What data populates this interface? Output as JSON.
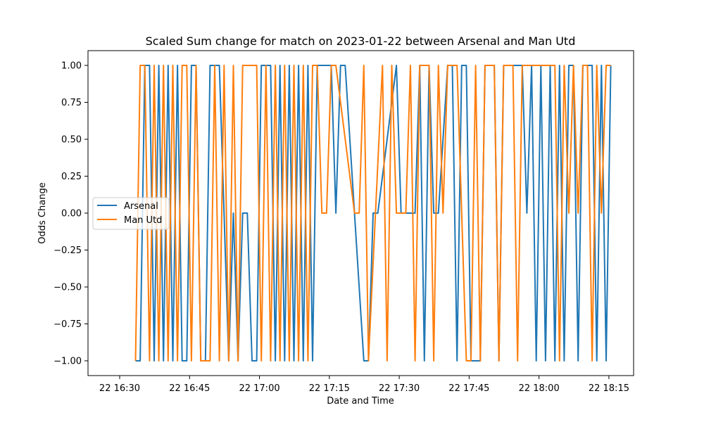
{
  "chart_data": {
    "type": "line",
    "title": "Scaled Sum change for match on 2023-01-22 between Arsenal and Man Utd",
    "xlabel": "Date and Time",
    "ylabel": "Odds Change",
    "x_tick_labels": [
      "22 16:30",
      "22 16:45",
      "22 17:00",
      "22 17:15",
      "22 17:30",
      "22 17:45",
      "22 18:00",
      "22 18:15"
    ],
    "x_tick_minutes": [
      0,
      15,
      30,
      45,
      60,
      75,
      90,
      105
    ],
    "y_tick_labels": [
      "−1.00",
      "−0.75",
      "−0.50",
      "−0.25",
      "0.00",
      "0.25",
      "0.50",
      "0.75",
      "1.00"
    ],
    "y_ticks": [
      -1.0,
      -0.75,
      -0.5,
      -0.25,
      0.0,
      0.25,
      0.5,
      0.75,
      1.0
    ],
    "xlim_minutes": [
      -6.8,
      110.3
    ],
    "ylim": [
      -1.1,
      1.1
    ],
    "grid": false,
    "legend_position": "center-left",
    "series": [
      {
        "name": "Arsenal",
        "color": "#1f77b4",
        "points": [
          [
            3.4,
            -1
          ],
          [
            4.4,
            -1
          ],
          [
            5.4,
            1
          ],
          [
            6.4,
            1
          ],
          [
            7.4,
            -1
          ],
          [
            8.4,
            1
          ],
          [
            9.4,
            -1
          ],
          [
            10.4,
            1
          ],
          [
            11.4,
            -1
          ],
          [
            12.4,
            1
          ],
          [
            13.4,
            -1
          ],
          [
            14.4,
            -1
          ],
          [
            15.4,
            1
          ],
          [
            16.4,
            1
          ],
          [
            17.4,
            -1
          ],
          [
            18.4,
            -1
          ],
          [
            19.4,
            1
          ],
          [
            20.4,
            1
          ],
          [
            21.4,
            1
          ],
          [
            23.4,
            -1
          ],
          [
            24.4,
            0
          ],
          [
            25.4,
            -1
          ],
          [
            26.4,
            0
          ],
          [
            27.4,
            0
          ],
          [
            28.4,
            -1
          ],
          [
            29.4,
            -1
          ],
          [
            30.4,
            1
          ],
          [
            32.4,
            1
          ],
          [
            33.4,
            -1
          ],
          [
            34.4,
            1
          ],
          [
            35.4,
            -1
          ],
          [
            36.4,
            1
          ],
          [
            37.4,
            -1
          ],
          [
            38.4,
            1
          ],
          [
            39.4,
            -1
          ],
          [
            40.4,
            1
          ],
          [
            41.4,
            -1
          ],
          [
            42.4,
            1
          ],
          [
            45.4,
            1
          ],
          [
            46.4,
            0
          ],
          [
            47.4,
            1
          ],
          [
            48.4,
            1
          ],
          [
            52.4,
            -1
          ],
          [
            53.4,
            -1
          ],
          [
            54.4,
            0
          ],
          [
            55.4,
            0
          ],
          [
            59.4,
            1
          ],
          [
            60.4,
            0
          ],
          [
            63.4,
            0
          ],
          [
            64.4,
            1
          ],
          [
            65.4,
            -1
          ],
          [
            66.4,
            1
          ],
          [
            67.4,
            0
          ],
          [
            68.4,
            0
          ],
          [
            70.4,
            1
          ],
          [
            71.4,
            1
          ],
          [
            72.4,
            -1
          ],
          [
            73.4,
            1
          ],
          [
            74.4,
            1
          ],
          [
            75.4,
            -1
          ],
          [
            77.4,
            -1
          ],
          [
            78.4,
            1
          ],
          [
            80.4,
            1
          ],
          [
            81.4,
            -1
          ],
          [
            82.4,
            1
          ],
          [
            86.4,
            1
          ],
          [
            87.4,
            0
          ],
          [
            88.4,
            1
          ],
          [
            89.4,
            -1
          ],
          [
            90.4,
            1
          ],
          [
            91.4,
            -1
          ],
          [
            92.4,
            1
          ],
          [
            93.4,
            -1
          ],
          [
            94.4,
            1
          ],
          [
            95.4,
            -1
          ],
          [
            96.4,
            1
          ],
          [
            97.4,
            1
          ],
          [
            98.4,
            -1
          ],
          [
            99.4,
            1
          ],
          [
            101.4,
            1
          ],
          [
            102.4,
            -1
          ],
          [
            103.4,
            1
          ],
          [
            104.4,
            -1
          ],
          [
            105.4,
            1
          ]
        ]
      },
      {
        "name": "Man Utd",
        "color": "#ff7f0e",
        "points": [
          [
            3.4,
            -1
          ],
          [
            4.4,
            1
          ],
          [
            5.4,
            1
          ],
          [
            6.4,
            -1
          ],
          [
            7.4,
            1
          ],
          [
            8.4,
            -1
          ],
          [
            9.4,
            1
          ],
          [
            10.4,
            -1
          ],
          [
            11.4,
            1
          ],
          [
            12.4,
            -1
          ],
          [
            13.4,
            1
          ],
          [
            14.4,
            1
          ],
          [
            15.4,
            -1
          ],
          [
            16.4,
            1
          ],
          [
            17.4,
            -1
          ],
          [
            18.4,
            -1
          ],
          [
            19.4,
            -1
          ],
          [
            20.4,
            1
          ],
          [
            21.4,
            -1
          ],
          [
            22.4,
            1
          ],
          [
            23.4,
            -1
          ],
          [
            24.4,
            1
          ],
          [
            25.4,
            -1
          ],
          [
            26.4,
            1
          ],
          [
            27.4,
            1
          ],
          [
            28.4,
            1
          ],
          [
            29.4,
            1
          ],
          [
            30.4,
            -1
          ],
          [
            31.4,
            1
          ],
          [
            32.4,
            -1
          ],
          [
            33.4,
            1
          ],
          [
            34.4,
            -1
          ],
          [
            35.4,
            1
          ],
          [
            36.4,
            -1
          ],
          [
            37.4,
            1
          ],
          [
            38.4,
            -1
          ],
          [
            39.4,
            1
          ],
          [
            40.4,
            -1
          ],
          [
            41.4,
            1
          ],
          [
            42.4,
            1
          ],
          [
            43.4,
            0
          ],
          [
            44.4,
            0
          ],
          [
            45.4,
            1
          ],
          [
            46.4,
            1
          ],
          [
            50.4,
            0
          ],
          [
            51.4,
            0
          ],
          [
            52.4,
            1
          ],
          [
            53.4,
            -1
          ],
          [
            56.4,
            1
          ],
          [
            57.4,
            -1
          ],
          [
            58.4,
            1
          ],
          [
            59.4,
            0
          ],
          [
            61.4,
            0
          ],
          [
            62.4,
            1
          ],
          [
            63.4,
            -1
          ],
          [
            64.4,
            1
          ],
          [
            65.4,
            1
          ],
          [
            66.4,
            1
          ],
          [
            67.4,
            -1
          ],
          [
            68.4,
            1
          ],
          [
            69.4,
            0
          ],
          [
            70.4,
            1
          ],
          [
            71.4,
            1
          ],
          [
            72.4,
            1
          ],
          [
            74.4,
            -1
          ],
          [
            75.4,
            -1
          ],
          [
            76.4,
            1
          ],
          [
            77.4,
            -1
          ],
          [
            78.4,
            1
          ],
          [
            79.4,
            1
          ],
          [
            80.4,
            1
          ],
          [
            81.4,
            -1
          ],
          [
            82.4,
            1
          ],
          [
            83.4,
            1
          ],
          [
            84.4,
            1
          ],
          [
            85.4,
            -1
          ],
          [
            86.4,
            1
          ],
          [
            87.4,
            1
          ],
          [
            88.4,
            1
          ],
          [
            89.4,
            1
          ],
          [
            90.4,
            1
          ],
          [
            91.4,
            1
          ],
          [
            92.4,
            1
          ],
          [
            93.4,
            1
          ],
          [
            94.4,
            -1
          ],
          [
            95.4,
            1
          ],
          [
            96.4,
            0
          ],
          [
            97.4,
            1
          ],
          [
            98.4,
            0
          ],
          [
            99.4,
            1
          ],
          [
            100.4,
            1
          ],
          [
            101.4,
            -1
          ],
          [
            102.4,
            1
          ],
          [
            103.4,
            0
          ],
          [
            104.4,
            1
          ],
          [
            105.4,
            1
          ]
        ]
      }
    ]
  }
}
